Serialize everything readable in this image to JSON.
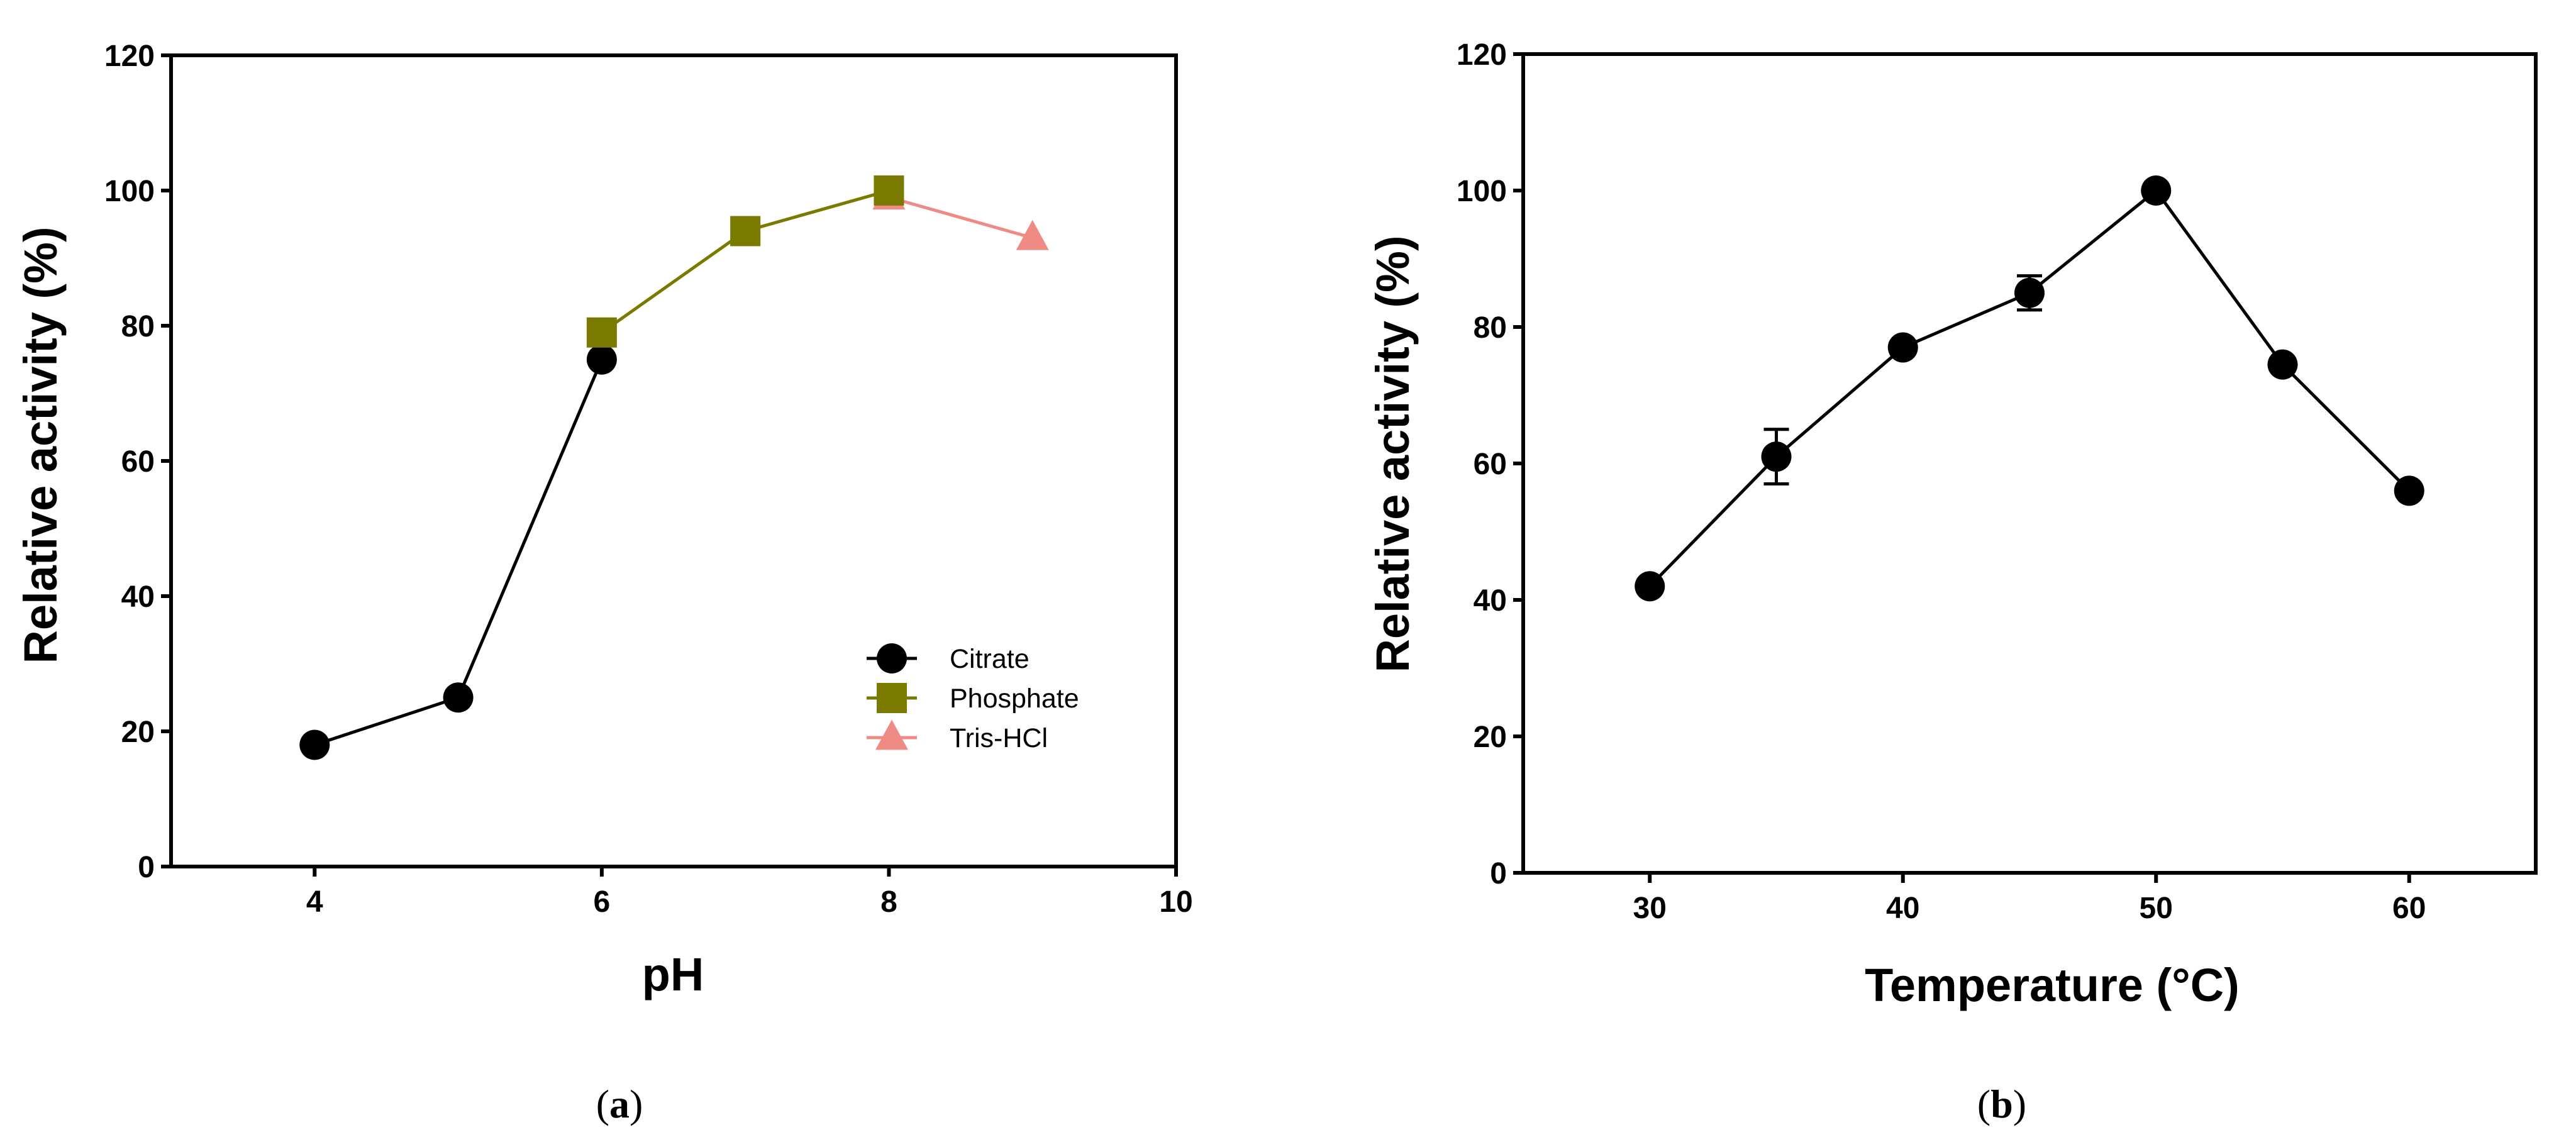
{
  "chart_data": [
    {
      "type": "line",
      "panel": "a",
      "panel_label": "a",
      "xlabel": "pH",
      "ylabel": "Relative activity (%)",
      "xlim": [
        3,
        10
      ],
      "ylim": [
        0,
        120
      ],
      "xticks": [
        4,
        6,
        8,
        10
      ],
      "yticks": [
        0,
        20,
        40,
        60,
        80,
        100,
        120
      ],
      "legend_position": "bottom-right",
      "series": [
        {
          "name": "Citrate",
          "marker": "circle",
          "color": "#000000",
          "x": [
            4,
            5,
            6
          ],
          "y": [
            18,
            25,
            75
          ]
        },
        {
          "name": "Tris-HCl",
          "marker": "triangle",
          "color": "#f08a84",
          "x": [
            8,
            9
          ],
          "y": [
            99,
            93
          ]
        },
        {
          "name": "Phosphate",
          "marker": "square",
          "color": "#7a7a00",
          "x": [
            6,
            7,
            8
          ],
          "y": [
            79,
            94,
            100
          ]
        }
      ],
      "legend_order": [
        "Citrate",
        "Phosphate",
        "Tris-HCl"
      ]
    },
    {
      "type": "line",
      "panel": "b",
      "panel_label": "b",
      "xlabel": "Temperature (°C)",
      "ylabel": "Relative activity (%)",
      "xlim": [
        25,
        65
      ],
      "ylim": [
        0,
        120
      ],
      "xticks": [
        30,
        40,
        50,
        60
      ],
      "yticks": [
        0,
        20,
        40,
        60,
        80,
        100,
        120
      ],
      "series": [
        {
          "name": "Temperature",
          "marker": "circle",
          "color": "#000000",
          "x": [
            30,
            35,
            40,
            45,
            50,
            55,
            60
          ],
          "y": [
            42,
            61,
            77,
            85,
            100,
            74.5,
            56
          ],
          "error": [
            0,
            4,
            0,
            2.5,
            0,
            0,
            0
          ]
        }
      ]
    }
  ]
}
